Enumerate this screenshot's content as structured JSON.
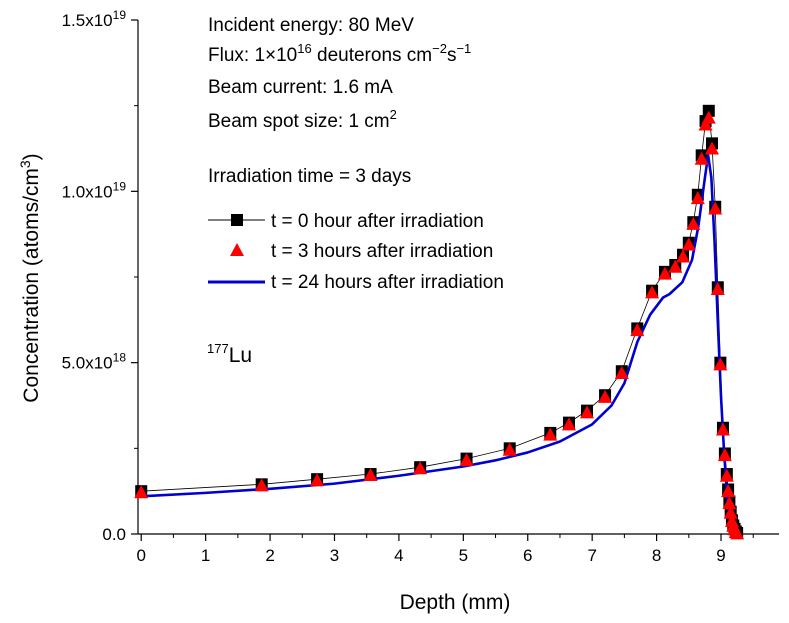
{
  "chart_data": {
    "type": "line",
    "xlabel": "Depth (mm)",
    "ylabel": "Concentration (atoms/cm",
    "ylabel_sup": "3",
    "ylabel_end": ")",
    "xlim": [
      -0.05,
      9.9
    ],
    "ylim": [
      0,
      1.5e+19
    ],
    "x_ticks": [
      0,
      1,
      2,
      3,
      4,
      5,
      6,
      7,
      8,
      9
    ],
    "x_tick_labels": [
      "0",
      "1",
      "2",
      "3",
      "4",
      "5",
      "6",
      "7",
      "8",
      "9"
    ],
    "y_ticks": [
      0,
      5e+18,
      1e+19,
      1.5e+19
    ],
    "y_tick_labels": [
      {
        "base": "0.0",
        "sup": ""
      },
      {
        "base": "5.0x10",
        "sup": "18"
      },
      {
        "base": "1.0x10",
        "sup": "19"
      },
      {
        "base": "1.5x10",
        "sup": "19"
      }
    ],
    "series": [
      {
        "name": "t = 0 hour after irradiation",
        "marker": "square",
        "color": "#000000",
        "x": [
          0,
          1.87,
          2.73,
          3.56,
          4.33,
          5.05,
          5.72,
          6.35,
          6.64,
          6.92,
          7.2,
          7.46,
          7.7,
          7.93,
          8.13,
          8.29,
          8.41,
          8.5,
          8.57,
          8.64,
          8.7,
          8.76,
          8.81,
          8.86,
          8.91,
          8.95,
          8.99,
          9.03,
          9.06,
          9.09,
          9.11,
          9.13,
          9.15,
          9.17,
          9.19,
          9.21,
          9.23,
          9.25
        ],
        "y": [
          1.25e+18,
          1.45e+18,
          1.6e+18,
          1.75e+18,
          1.95e+18,
          2.2e+18,
          2.5e+18,
          2.95e+18,
          3.25e+18,
          3.6e+18,
          4.05e+18,
          4.75e+18,
          6e+18,
          7.1e+18,
          7.65e+18,
          7.85e+18,
          8.15e+18,
          8.5e+18,
          9.1e+18,
          9.9e+18,
          1.105e+19,
          1.205e+19,
          1.235e+19,
          1.14e+19,
          9.55e+18,
          7.2e+18,
          5e+18,
          3.1e+18,
          2.35e+18,
          1.75e+18,
          1.3e+18,
          9.5e+17,
          6.5e+17,
          4e+17,
          2.5e+17,
          1.5e+17,
          7e+16,
          3e+16
        ]
      },
      {
        "name": "t = 3 hours after irradiation",
        "marker": "triangle",
        "color": "#ff0000",
        "x": [
          0,
          1.87,
          2.73,
          3.56,
          4.33,
          5.05,
          5.72,
          6.35,
          6.64,
          6.92,
          7.2,
          7.46,
          7.7,
          7.93,
          8.13,
          8.29,
          8.41,
          8.5,
          8.57,
          8.64,
          8.7,
          8.76,
          8.81,
          8.86,
          8.91,
          8.95,
          8.99,
          9.03,
          9.06,
          9.09,
          9.11,
          9.13,
          9.15,
          9.17,
          9.19,
          9.21,
          9.23,
          9.25
        ],
        "y": [
          1.22e+18,
          1.42e+18,
          1.57e+18,
          1.72e+18,
          1.92e+18,
          2.16e+18,
          2.46e+18,
          2.9e+18,
          3.2e+18,
          3.55e+18,
          4e+18,
          4.7e+18,
          5.95e+18,
          7.05e+18,
          7.6e+18,
          7.8e+18,
          8.1e+18,
          8.45e+18,
          9.05e+18,
          9.8e+18,
          1.095e+19,
          1.195e+19,
          1.215e+19,
          1.125e+19,
          9.5e+18,
          7.15e+18,
          4.95e+18,
          3.05e+18,
          2.3e+18,
          1.7e+18,
          1.25e+18,
          9e+17,
          6.2e+17,
          3.8e+17,
          2.4e+17,
          1.4e+17,
          6e+16,
          2e+16
        ]
      },
      {
        "name": "t = 24 hours after irradiation",
        "marker": "none",
        "color": "#0000d0",
        "x": [
          0,
          1,
          2,
          3,
          4,
          5,
          5.5,
          6,
          6.5,
          7,
          7.3,
          7.5,
          7.7,
          7.9,
          8.1,
          8.2,
          8.4,
          8.55,
          8.65,
          8.75,
          8.8,
          8.85,
          8.9,
          8.95,
          9,
          9.05,
          9.1,
          9.15,
          9.2,
          9.25
        ],
        "y": [
          1.1e+18,
          1.2e+18,
          1.32e+18,
          1.47e+18,
          1.7e+18,
          1.97e+18,
          2.15e+18,
          2.38e+18,
          2.7e+18,
          3.2e+18,
          3.75e+18,
          4.4e+18,
          5.6e+18,
          6.4e+18,
          6.9e+18,
          7e+18,
          7.35e+18,
          8e+18,
          9e+18,
          1.04e+19,
          1.105e+19,
          1.04e+19,
          8.5e+18,
          6.2e+18,
          4e+18,
          2.3e+18,
          1e+18,
          4e+17,
          1e+17,
          2e+16
        ]
      }
    ]
  },
  "annotations": {
    "energy": "Incident energy: 80 MeV",
    "flux_pre": "Flux: 1×10",
    "flux_sup1": "16",
    "flux_mid": " deuterons cm",
    "flux_sup2": "−2",
    "flux_mid2": "s",
    "flux_sup3": "−1",
    "current": "Beam current: 1.6 mA",
    "spot_pre": "Beam spot size: 1 cm",
    "spot_sup": "2",
    "irradiation": "Irradiation time = 3 days",
    "isotope_sup": "177",
    "isotope": "Lu"
  }
}
